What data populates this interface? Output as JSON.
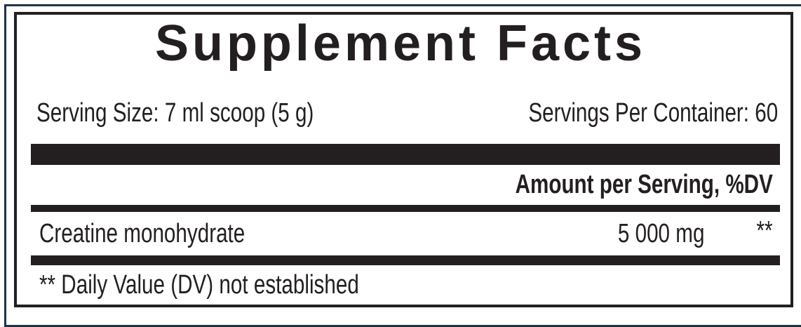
{
  "title": "Supplement Facts",
  "serving_size": "Serving Size: 7 ml scoop (5 g)",
  "servings_per_container": "Servings Per Container: 60",
  "column_header": "Amount per Serving, %DV",
  "ingredients": [
    {
      "name": "Creatine monohydrate",
      "amount": "5 000 mg",
      "dv": "**"
    }
  ],
  "footnote": "** Daily Value (DV) not established",
  "colors": {
    "text": "#231f20",
    "outer_border": "#1d3447"
  }
}
